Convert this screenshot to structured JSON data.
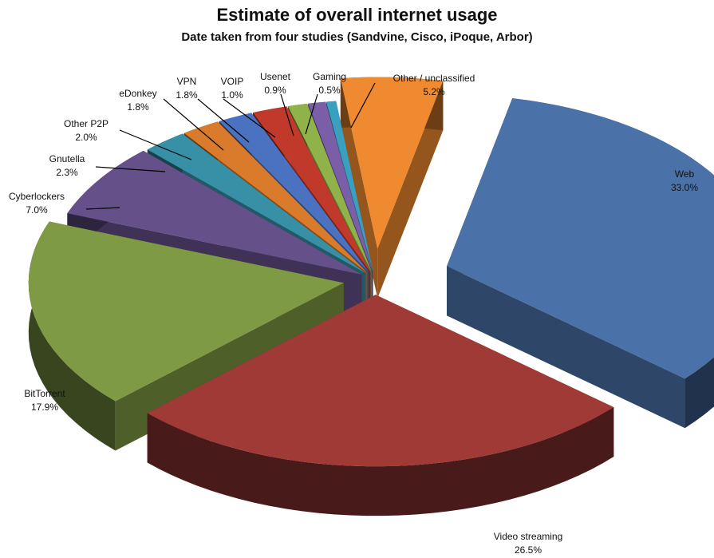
{
  "chart_data": {
    "type": "pie",
    "title": "Estimate of overall internet usage",
    "subtitle": "Date taken from four studies (Sandvine, Cisco, iPoque, Arbor)",
    "slices": [
      {
        "label": "Web",
        "value": 33.0,
        "value_label": "33.0%",
        "color": "#4a72a8"
      },
      {
        "label": "Video streaming",
        "value": 26.5,
        "value_label": "26.5%",
        "color": "#a03a37"
      },
      {
        "label": "BitTorrent",
        "value": 17.9,
        "value_label": "17.9%",
        "color": "#7f9a44"
      },
      {
        "label": "Cyberlockers",
        "value": 7.0,
        "value_label": "7.0%",
        "color": "#65508a"
      },
      {
        "label": "Gnutella",
        "value": 2.3,
        "value_label": "2.3%",
        "color": "#3790a6"
      },
      {
        "label": "Other P2P",
        "value": 2.0,
        "value_label": "2.0%",
        "color": "#d97b2b"
      },
      {
        "label": "eDonkey",
        "value": 1.8,
        "value_label": "1.8%",
        "color": "#4a72c0"
      },
      {
        "label": "VPN",
        "value": 1.8,
        "value_label": "1.8%",
        "color": "#c0392b"
      },
      {
        "label": "VOIP",
        "value": 1.0,
        "value_label": "1.0%",
        "color": "#8fb34a"
      },
      {
        "label": "Usenet",
        "value": 0.9,
        "value_label": "0.9%",
        "color": "#7a5fa8"
      },
      {
        "label": "Gaming",
        "value": 0.5,
        "value_label": "0.5%",
        "color": "#3aa0c0"
      },
      {
        "label": "Other / unclassified",
        "value": 5.2,
        "value_label": "5.2%",
        "color": "#f08a30"
      }
    ],
    "legend": "none",
    "style": "3d-exploded"
  }
}
